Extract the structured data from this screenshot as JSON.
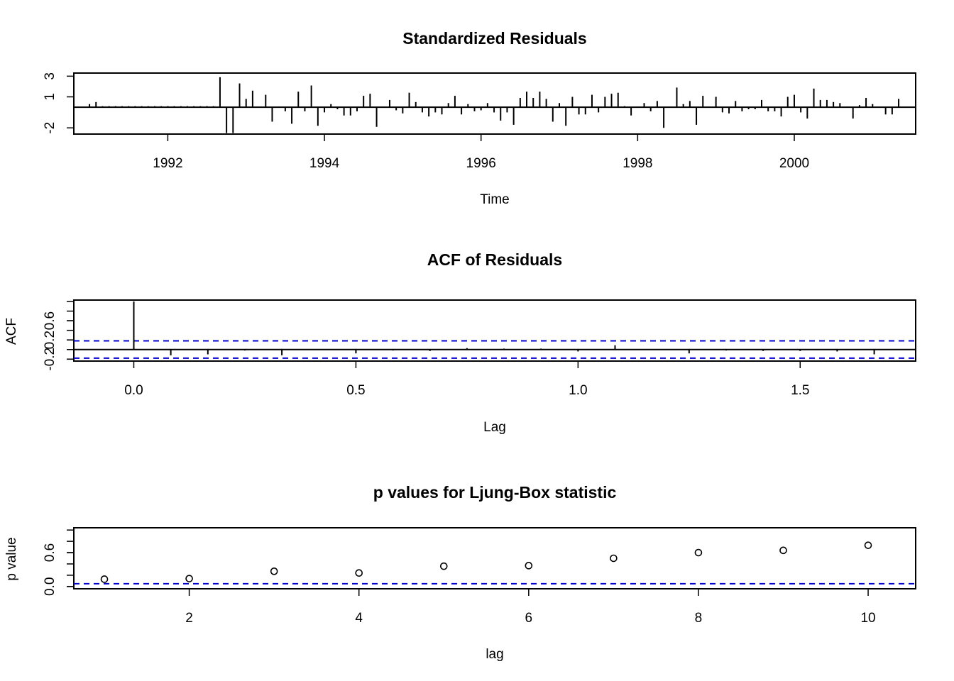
{
  "chart_data": [
    {
      "type": "line",
      "style": "histogram-spikes",
      "title": "Standardized Residuals",
      "xlabel": "Time",
      "ylabel": "",
      "xlim": [
        1990.8,
        2001.55
      ],
      "ylim": [
        -2.6,
        3.3
      ],
      "x_ticks": [
        "1992",
        "1994",
        "1996",
        "1998",
        "2000"
      ],
      "y_ticks": [
        "-2",
        "1",
        "3"
      ],
      "reference_line": 0,
      "start": 1991.0,
      "step": 0.08333,
      "values": [
        0.3,
        0.5,
        0.1,
        0.1,
        0.1,
        0.1,
        0.1,
        0.1,
        0.1,
        0.1,
        0.1,
        0.1,
        0.1,
        0.1,
        0.1,
        0.1,
        0.1,
        0.1,
        0.1,
        0.1,
        2.9,
        -2.5,
        -2.5,
        2.3,
        0.8,
        1.6,
        0.05,
        1.2,
        -1.4,
        0.05,
        -0.4,
        -1.6,
        1.5,
        -0.4,
        2.1,
        -1.8,
        -0.5,
        0.3,
        -0.2,
        -0.8,
        -0.8,
        -0.4,
        1.1,
        1.3,
        -1.9,
        0.05,
        0.7,
        -0.3,
        -0.6,
        1.4,
        0.5,
        -0.5,
        -0.9,
        -0.5,
        -0.7,
        0.4,
        1.1,
        -0.7,
        0.3,
        -0.4,
        -0.3,
        0.4,
        -0.5,
        -1.3,
        -0.5,
        -1.7,
        0.9,
        1.5,
        0.9,
        1.5,
        0.8,
        -1.4,
        0.4,
        -1.8,
        1.0,
        -0.7,
        -0.7,
        1.2,
        -0.5,
        1.0,
        1.3,
        1.4,
        0.1,
        -0.8,
        0.05,
        0.4,
        -0.4,
        0.6,
        -2.0,
        0.05,
        1.9,
        0.3,
        0.6,
        -1.7,
        1.1,
        0.05,
        1.0,
        -0.5,
        -0.6,
        0.6,
        -0.4,
        -0.2,
        -0.2,
        0.7,
        -0.4,
        -0.4,
        -0.9,
        1.0,
        1.2,
        -0.5,
        -1.1,
        1.8,
        0.7,
        0.7,
        0.5,
        0.4,
        0.05,
        -1.1,
        0.2,
        0.9,
        0.3,
        -0.05,
        -0.7,
        -0.7,
        0.8
      ]
    },
    {
      "type": "line",
      "style": "histogram-spikes",
      "title": "ACF of Residuals",
      "xlabel": "Lag",
      "ylabel": "ACF",
      "xlim": [
        -0.135,
        1.76
      ],
      "ylim": [
        -0.24,
        1.03
      ],
      "x_ticks": [
        "0.0",
        "0.5",
        "1.0",
        "1.5"
      ],
      "y_ticks": [
        "-0.2",
        "0.2",
        "0.6"
      ],
      "reference_line": 0,
      "confidence_bounds": [
        0.18,
        -0.18
      ],
      "lags": [
        0.0,
        0.0833,
        0.1667,
        0.25,
        0.3333,
        0.4167,
        0.5,
        0.5833,
        0.6667,
        0.75,
        0.8333,
        0.9167,
        1.0,
        1.0833,
        1.1667,
        1.25,
        1.3333,
        1.4167,
        1.5,
        1.5833,
        1.6667
      ],
      "values": [
        1.0,
        -0.12,
        -0.1,
        -0.02,
        -0.12,
        -0.01,
        -0.08,
        -0.02,
        -0.03,
        0.03,
        0.02,
        0.02,
        -0.04,
        0.09,
        -0.01,
        -0.08,
        -0.02,
        -0.03,
        -0.03,
        -0.04,
        -0.1
      ]
    },
    {
      "type": "scatter",
      "title": "p values for Ljung-Box statistic",
      "xlabel": "lag",
      "ylabel": "p value",
      "xlim": [
        0.64,
        10.56
      ],
      "ylim": [
        -0.04,
        1.04
      ],
      "x_ticks": [
        "2",
        "4",
        "6",
        "8",
        "10"
      ],
      "y_ticks": [
        "0.0",
        "0.6"
      ],
      "reference_line": 0.05,
      "x": [
        1,
        2,
        3,
        4,
        5,
        6,
        7,
        8,
        9,
        10
      ],
      "values": [
        0.13,
        0.14,
        0.27,
        0.24,
        0.36,
        0.37,
        0.5,
        0.6,
        0.64,
        0.73
      ]
    }
  ]
}
